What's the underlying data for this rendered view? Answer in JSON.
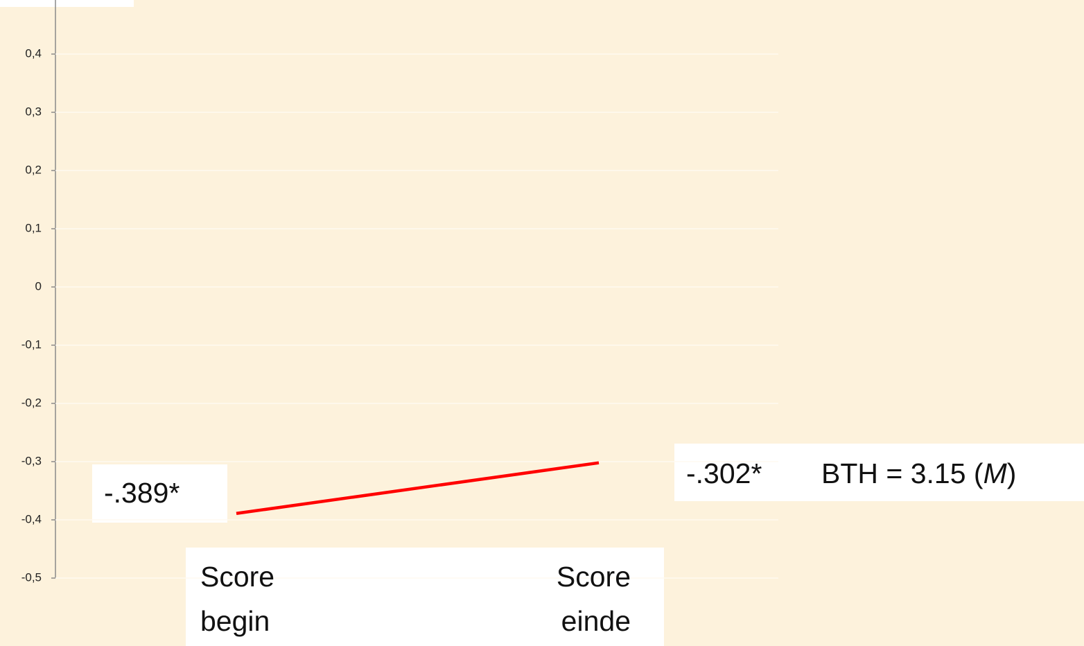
{
  "chart_data": {
    "type": "line",
    "categories": [
      [
        "Score",
        "begin"
      ],
      [
        "Score",
        "einde"
      ]
    ],
    "values": [
      -0.389,
      -0.302
    ],
    "value_labels": [
      "-.389*",
      "-.302*"
    ],
    "color": "#ff0000",
    "annotation": [
      "BTH = 3.15 (",
      "M",
      ")"
    ],
    "ylim": [
      -0.5,
      0.5
    ],
    "yticks": [
      {
        "value": 0.4,
        "label": "0,4"
      },
      {
        "value": 0.3,
        "label": "0,3"
      },
      {
        "value": 0.2,
        "label": "0,2"
      },
      {
        "value": 0.1,
        "label": "0,1"
      },
      0,
      {
        "value": -0.1,
        "label": "-0,1"
      },
      {
        "value": -0.2,
        "label": "-0,2"
      },
      {
        "value": -0.3,
        "label": "-0,3"
      },
      {
        "value": -0.4,
        "label": "-0,4"
      },
      {
        "value": -0.5,
        "label": "-0,5"
      }
    ],
    "grid": true
  }
}
